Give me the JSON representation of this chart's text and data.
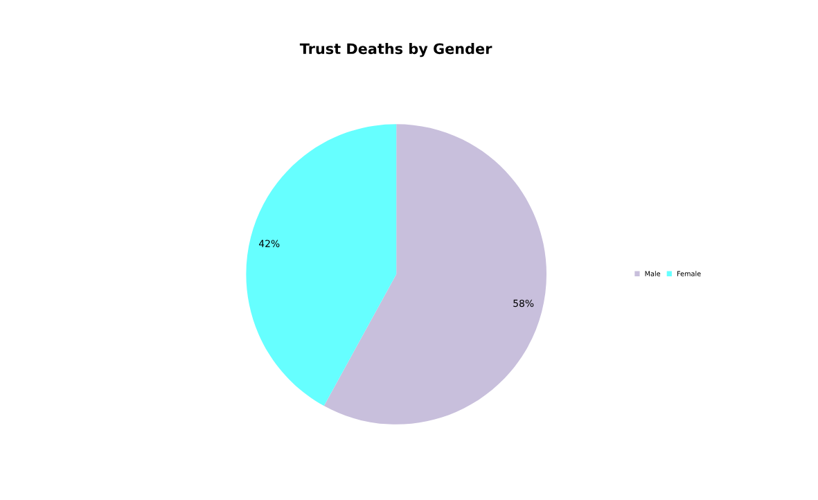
{
  "chart_data": {
    "type": "pie",
    "title": "Trust Deaths by Gender",
    "categories": [
      "Male",
      "Female"
    ],
    "values": [
      58,
      42
    ],
    "colors": [
      "#c8bfdc",
      "#66ffff"
    ],
    "value_labels": [
      "58%",
      "42%"
    ],
    "legend": "right"
  }
}
